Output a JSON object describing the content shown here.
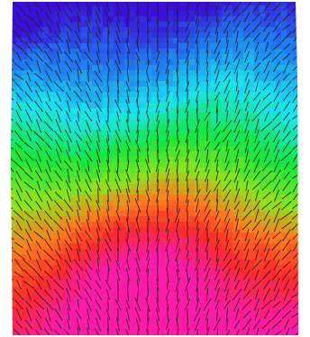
{
  "image": {
    "subject": "vector-field-over-heatmap",
    "colormap": [
      "#3a10d8",
      "#1f7ef2",
      "#18e6f0",
      "#12e83c",
      "#8ee51a",
      "#ff7a1c",
      "#ff2a2a",
      "#ff1aa8"
    ],
    "arrow_color": "#202020",
    "background": "#ffffff"
  }
}
